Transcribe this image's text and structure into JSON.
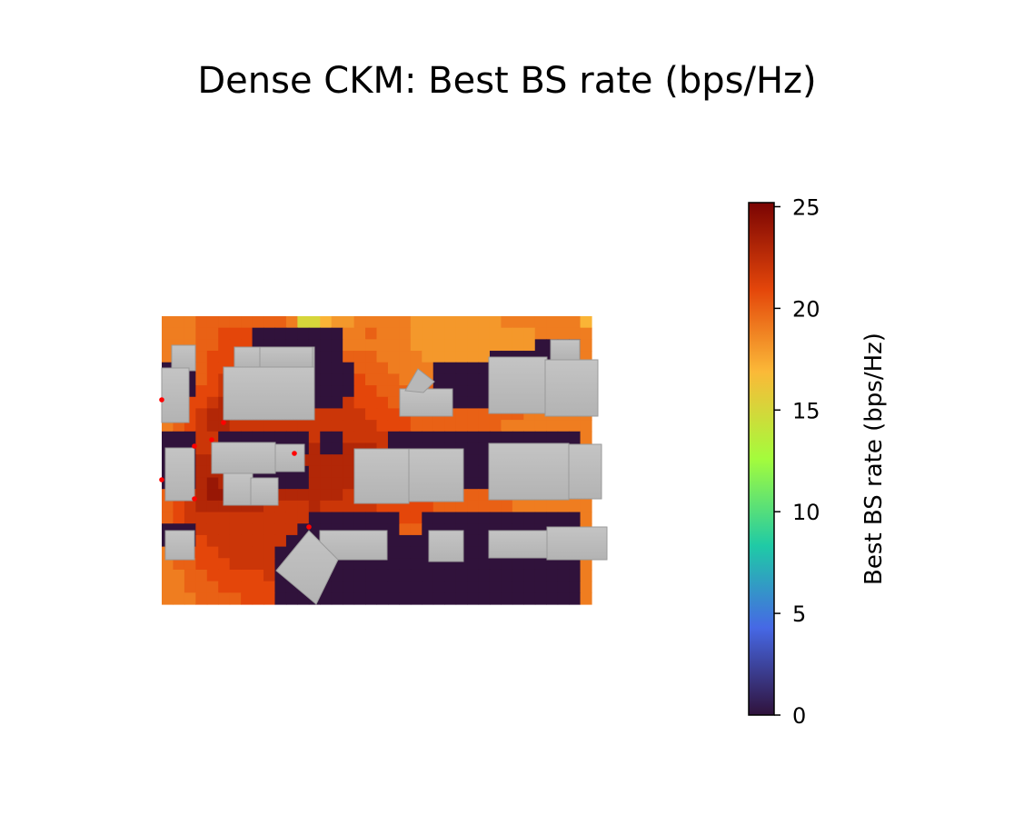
{
  "chart_data": {
    "type": "heatmap",
    "title": "Dense CKM: Best BS rate (bps/Hz)",
    "colorbar": {
      "label": "Best BS rate (bps/Hz)",
      "colormap": "turbo",
      "range": [
        0,
        25.2
      ],
      "ticks": [
        "0",
        "5",
        "10",
        "15",
        "20",
        "25"
      ],
      "tick_values": [
        0,
        5,
        10,
        15,
        20,
        25
      ],
      "colors": [
        "#30123b",
        "#4668e5",
        "#1fcaa6",
        "#a4fc3c",
        "#fbb938",
        "#e4460a",
        "#7a0403"
      ]
    },
    "grid": "off",
    "axes": "off",
    "map": {
      "cols": 38,
      "rows": 25,
      "values": [
        [
          19,
          19,
          19,
          20,
          20,
          20,
          20,
          20,
          20,
          20,
          20,
          19,
          15,
          15,
          17,
          18,
          18,
          19,
          19,
          19,
          19,
          19,
          18,
          18,
          18,
          18,
          18,
          18,
          18,
          18,
          19,
          19,
          19,
          19,
          19,
          19,
          19,
          17
        ],
        [
          19,
          19,
          19,
          20,
          20,
          21,
          21,
          21,
          0,
          0,
          0,
          0,
          0,
          0,
          0,
          0,
          19,
          19,
          20,
          19,
          19,
          19,
          18,
          18,
          18,
          18,
          18,
          18,
          18,
          18,
          18,
          18,
          18,
          19,
          19,
          19,
          19,
          19
        ],
        [
          19,
          19,
          19,
          20,
          20,
          21,
          21,
          21,
          0,
          0,
          0,
          0,
          0,
          0,
          0,
          0,
          19,
          19,
          19,
          19,
          19,
          19,
          18,
          18,
          18,
          18,
          18,
          18,
          18,
          18,
          18,
          18,
          18,
          0,
          0,
          0,
          0,
          19
        ],
        [
          19,
          19,
          19,
          20,
          21,
          21,
          21,
          21,
          0,
          0,
          0,
          0,
          0,
          0,
          0,
          0,
          20,
          20,
          20,
          19,
          19,
          19,
          19,
          18,
          18,
          18,
          18,
          18,
          18,
          0,
          0,
          0,
          0,
          0,
          0,
          0,
          0,
          19
        ],
        [
          0,
          0,
          0,
          20,
          21,
          21,
          21,
          22,
          0,
          0,
          0,
          0,
          0,
          0,
          0,
          0,
          0,
          20,
          20,
          20,
          19,
          19,
          19,
          19,
          0,
          0,
          0,
          0,
          0,
          0,
          0,
          0,
          0,
          0,
          0,
          0,
          0,
          19
        ],
        [
          0,
          0,
          0,
          20,
          21,
          22,
          22,
          22,
          0,
          0,
          0,
          0,
          0,
          0,
          0,
          0,
          0,
          21,
          20,
          20,
          20,
          19,
          19,
          19,
          0,
          0,
          0,
          0,
          0,
          0,
          0,
          0,
          0,
          0,
          0,
          0,
          0,
          19
        ],
        [
          0,
          0,
          0,
          21,
          21,
          22,
          22,
          22,
          0,
          0,
          0,
          0,
          0,
          0,
          0,
          0,
          0,
          21,
          21,
          20,
          20,
          20,
          20,
          20,
          0,
          0,
          0,
          0,
          0,
          0,
          0,
          0,
          0,
          0,
          0,
          0,
          0,
          19
        ],
        [
          19,
          20,
          21,
          21,
          22,
          23,
          23,
          22,
          0,
          0,
          0,
          0,
          0,
          0,
          0,
          0,
          22,
          21,
          21,
          21,
          20,
          20,
          20,
          20,
          0,
          0,
          0,
          0,
          0,
          19,
          19,
          0,
          0,
          0,
          0,
          0,
          0,
          19
        ],
        [
          19,
          20,
          21,
          22,
          23,
          23,
          23,
          22,
          21,
          21,
          21,
          21,
          22,
          22,
          22,
          22,
          22,
          22,
          21,
          21,
          21,
          21,
          20,
          20,
          20,
          20,
          20,
          20,
          20,
          20,
          20,
          20,
          19,
          19,
          19,
          19,
          19,
          19
        ],
        [
          19,
          20,
          21,
          22,
          23,
          23,
          22,
          22,
          22,
          22,
          22,
          22,
          22,
          22,
          22,
          22,
          22,
          22,
          22,
          21,
          21,
          21,
          20,
          20,
          20,
          20,
          20,
          20,
          20,
          20,
          19,
          19,
          19,
          19,
          19,
          19,
          19,
          19
        ],
        [
          0,
          0,
          0,
          22,
          22,
          0,
          0,
          0,
          0,
          0,
          0,
          0,
          0,
          22,
          0,
          0,
          22,
          22,
          22,
          22,
          0,
          0,
          0,
          0,
          0,
          0,
          0,
          0,
          0,
          0,
          0,
          0,
          0,
          0,
          0,
          0,
          0,
          19
        ],
        [
          0,
          0,
          0,
          22,
          22,
          0,
          0,
          0,
          0,
          0,
          0,
          0,
          0,
          23,
          0,
          0,
          23,
          23,
          23,
          22,
          0,
          0,
          0,
          0,
          0,
          0,
          0,
          0,
          0,
          0,
          0,
          0,
          0,
          0,
          0,
          0,
          0,
          19
        ],
        [
          0,
          0,
          0,
          23,
          23,
          23,
          23,
          0,
          0,
          0,
          0,
          0,
          23,
          23,
          23,
          23,
          23,
          23,
          23,
          22,
          0,
          0,
          0,
          0,
          0,
          0,
          0,
          0,
          0,
          0,
          0,
          0,
          0,
          0,
          0,
          0,
          0,
          19
        ],
        [
          0,
          0,
          0,
          23,
          23,
          23,
          23,
          0,
          0,
          0,
          0,
          0,
          0,
          23,
          23,
          23,
          23,
          23,
          22,
          22,
          0,
          0,
          0,
          0,
          0,
          0,
          0,
          0,
          0,
          0,
          0,
          0,
          0,
          0,
          0,
          0,
          0,
          19
        ],
        [
          0,
          0,
          0,
          23,
          24,
          23,
          23,
          0,
          0,
          0,
          0,
          0,
          0,
          23,
          23,
          23,
          23,
          22,
          22,
          22,
          0,
          0,
          0,
          0,
          0,
          0,
          0,
          0,
          0,
          0,
          0,
          0,
          0,
          0,
          0,
          0,
          0,
          19
        ],
        [
          20,
          21,
          22,
          23,
          24,
          24,
          23,
          23,
          23,
          23,
          23,
          23,
          23,
          23,
          23,
          23,
          22,
          22,
          22,
          22,
          22,
          21,
          21,
          21,
          20,
          20,
          20,
          20,
          20,
          20,
          20,
          19,
          19,
          19,
          19,
          19,
          19,
          19
        ],
        [
          20,
          21,
          22,
          23,
          23,
          23,
          23,
          23,
          23,
          22,
          22,
          22,
          22,
          23,
          22,
          22,
          22,
          22,
          22,
          21,
          21,
          21,
          21,
          21,
          20,
          20,
          20,
          20,
          20,
          20,
          20,
          19,
          19,
          19,
          19,
          19,
          19,
          19
        ],
        [
          20,
          21,
          22,
          22,
          22,
          22,
          22,
          22,
          22,
          22,
          22,
          22,
          22,
          0,
          0,
          0,
          0,
          0,
          0,
          0,
          0,
          21,
          21,
          0,
          0,
          0,
          0,
          0,
          0,
          0,
          0,
          0,
          0,
          0,
          0,
          0,
          0,
          19
        ],
        [
          0,
          0,
          0,
          22,
          22,
          22,
          22,
          22,
          22,
          22,
          22,
          22,
          0,
          0,
          0,
          0,
          0,
          0,
          0,
          0,
          0,
          20,
          20,
          0,
          0,
          0,
          0,
          0,
          0,
          0,
          0,
          0,
          0,
          0,
          0,
          0,
          0,
          19
        ],
        [
          0,
          0,
          0,
          21,
          22,
          22,
          22,
          22,
          22,
          22,
          22,
          0,
          0,
          0,
          0,
          0,
          0,
          0,
          0,
          0,
          0,
          0,
          0,
          0,
          0,
          0,
          0,
          0,
          0,
          0,
          0,
          0,
          0,
          0,
          0,
          0,
          0,
          19
        ],
        [
          19,
          20,
          21,
          21,
          21,
          22,
          22,
          22,
          22,
          22,
          0,
          0,
          0,
          0,
          0,
          0,
          0,
          0,
          0,
          0,
          0,
          0,
          0,
          0,
          0,
          0,
          0,
          0,
          0,
          0,
          0,
          0,
          0,
          0,
          0,
          0,
          0,
          19
        ],
        [
          19,
          20,
          20,
          21,
          21,
          21,
          22,
          22,
          22,
          22,
          0,
          0,
          0,
          0,
          0,
          0,
          0,
          0,
          0,
          0,
          0,
          0,
          0,
          0,
          0,
          0,
          0,
          0,
          0,
          0,
          0,
          0,
          0,
          0,
          0,
          0,
          0,
          19
        ],
        [
          19,
          19,
          20,
          20,
          21,
          21,
          21,
          21,
          21,
          22,
          0,
          0,
          0,
          0,
          0,
          0,
          0,
          0,
          0,
          0,
          0,
          0,
          0,
          0,
          0,
          0,
          0,
          0,
          0,
          0,
          0,
          0,
          0,
          0,
          0,
          0,
          0,
          19
        ],
        [
          19,
          19,
          20,
          20,
          20,
          21,
          21,
          21,
          21,
          21,
          0,
          0,
          0,
          0,
          0,
          0,
          0,
          0,
          0,
          0,
          0,
          0,
          0,
          0,
          0,
          0,
          0,
          0,
          0,
          0,
          0,
          0,
          0,
          0,
          0,
          0,
          0,
          19
        ],
        [
          19,
          19,
          19,
          20,
          20,
          20,
          20,
          21,
          21,
          21,
          0,
          0,
          0,
          0,
          0,
          0,
          0,
          0,
          0,
          0,
          0,
          0,
          0,
          0,
          0,
          0,
          0,
          0,
          0,
          0,
          0,
          0,
          0,
          0,
          0,
          0,
          0,
          19
        ]
      ]
    },
    "base_stations": 8
  }
}
